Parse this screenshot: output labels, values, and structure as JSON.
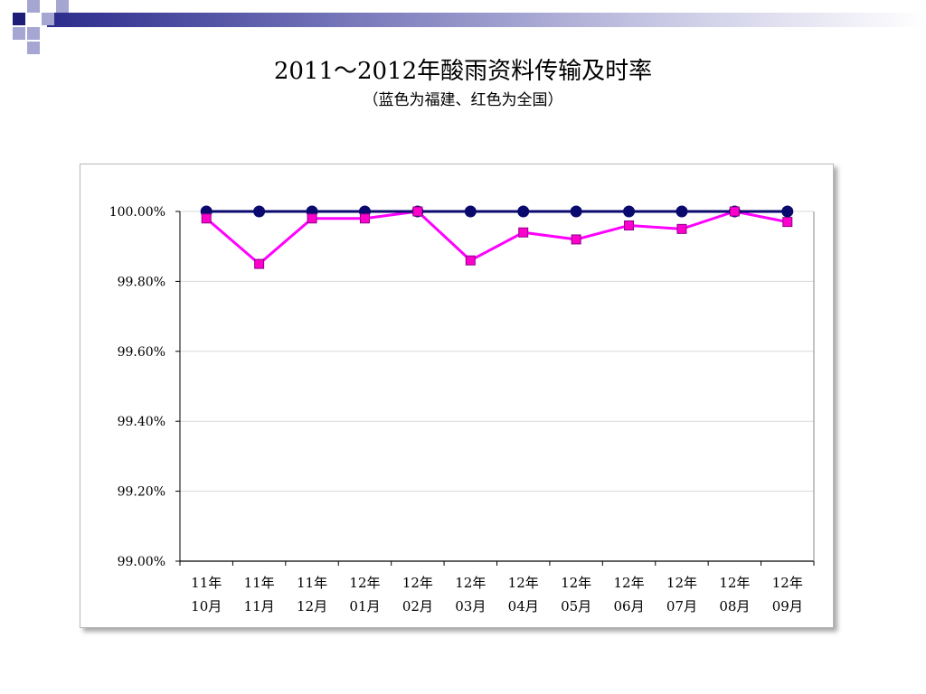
{
  "slide": {
    "title": "2011～2012年酸雨资料传输及时率",
    "subtitle": "（蓝色为福建、红色为全国）"
  },
  "colors": {
    "fujian": "#0a0a6e",
    "national": "#ff00cc",
    "national_line": "#ff00ff",
    "deco_dark": "#1e1e78",
    "deco_light": "#a6a6d2"
  },
  "chart_data": {
    "type": "line",
    "title": "",
    "xlabel": "",
    "ylabel": "",
    "categories": [
      [
        "11年",
        "10月"
      ],
      [
        "11年",
        "11月"
      ],
      [
        "11年",
        "12月"
      ],
      [
        "12年",
        "01月"
      ],
      [
        "12年",
        "02月"
      ],
      [
        "12年",
        "03月"
      ],
      [
        "12年",
        "04月"
      ],
      [
        "12年",
        "05月"
      ],
      [
        "12年",
        "06月"
      ],
      [
        "12年",
        "07月"
      ],
      [
        "12年",
        "08月"
      ],
      [
        "12年",
        "09月"
      ]
    ],
    "ylim": [
      99.0,
      100.0
    ],
    "yticks": [
      {
        "value": 99.0,
        "label": "99.00%"
      },
      {
        "value": 99.2,
        "label": "99.20%"
      },
      {
        "value": 99.4,
        "label": "99.40%"
      },
      {
        "value": 99.6,
        "label": "99.60%"
      },
      {
        "value": 99.8,
        "label": "99.80%"
      },
      {
        "value": 100.0,
        "label": "100.00%"
      }
    ],
    "grid": true,
    "legend": "none",
    "series": [
      {
        "key": "fujian",
        "marker": "circle",
        "values": [
          100.0,
          100.0,
          100.0,
          100.0,
          100.0,
          100.0,
          100.0,
          100.0,
          100.0,
          100.0,
          100.0,
          100.0
        ]
      },
      {
        "key": "national",
        "marker": "square",
        "values": [
          99.98,
          99.85,
          99.98,
          99.98,
          100.0,
          99.86,
          99.94,
          99.92,
          99.96,
          99.95,
          100.0,
          99.97
        ]
      }
    ]
  }
}
